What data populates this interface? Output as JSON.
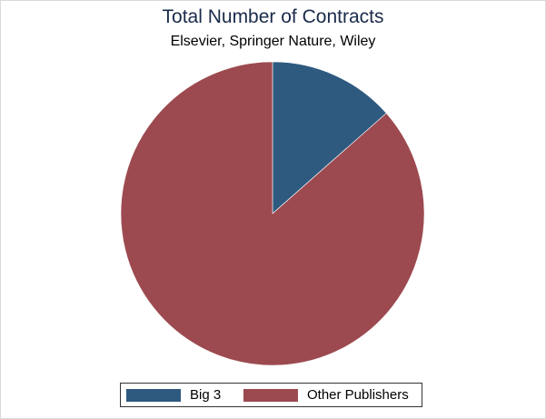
{
  "chart_data": {
    "type": "pie",
    "title": "Total Number of Contracts",
    "subtitle": "Elsevier, Springer Nature, Wiley",
    "series": [
      {
        "name": "Big 3",
        "value": 13.5,
        "color": "#2f5a80"
      },
      {
        "name": "Other Publishers",
        "value": 86.5,
        "color": "#9c4a50"
      }
    ],
    "start_angle": "12 o'clock",
    "direction": "clockwise",
    "legend_position": "bottom"
  }
}
